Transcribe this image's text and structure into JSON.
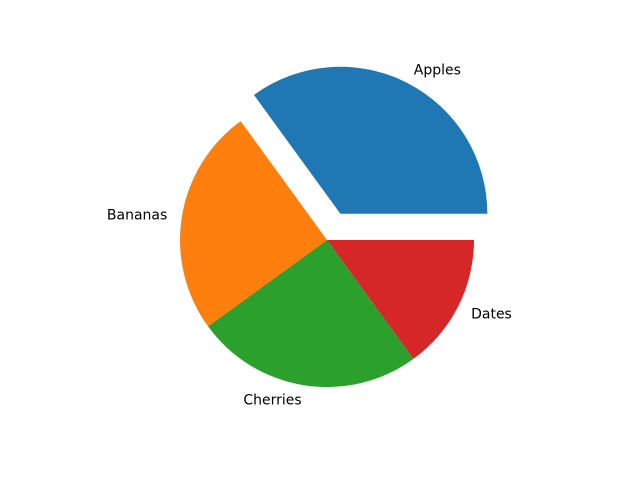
{
  "figure": {
    "background": "#ffffff"
  },
  "chart_data": {
    "type": "pie",
    "title": "",
    "labels": [
      "Apples",
      "Bananas",
      "Cherries",
      "Dates"
    ],
    "values": [
      35,
      25,
      25,
      15
    ],
    "colors": [
      "#1f77b4",
      "#ff7f0e",
      "#2ca02c",
      "#d62728"
    ],
    "explode": [
      0.2,
      0,
      0,
      0
    ],
    "startangle": 0,
    "direction": "counterclockwise",
    "labeldistance": 1.1,
    "label_color": "#000000",
    "legend": "none",
    "slice_angles_deg": [
      126,
      90,
      90,
      54
    ]
  }
}
